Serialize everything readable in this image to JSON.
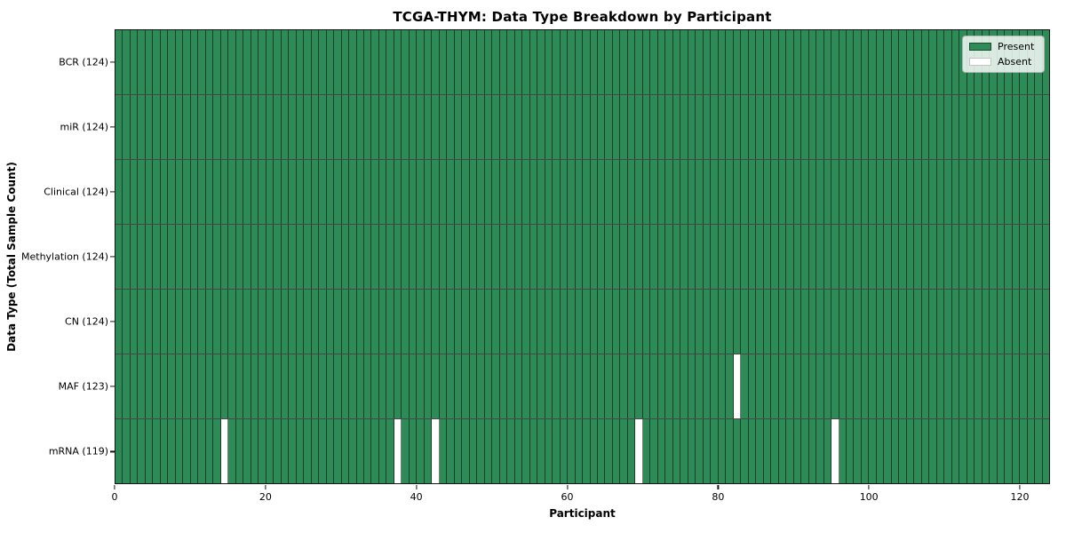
{
  "figure": {
    "title": "TCGA-THYM: Data Type Breakdown by Participant",
    "xlabel": "Participant",
    "ylabel": "Data Type (Total Sample Count)"
  },
  "legend": {
    "position": "upper-right",
    "items": [
      {
        "label": "Present",
        "color": "#2e8b57",
        "edge": "rgba(0,0,0,0.45)"
      },
      {
        "label": "Absent",
        "color": "#ffffff",
        "edge": "rgba(190,190,190,0.9)"
      }
    ]
  },
  "colors": {
    "present": "#2e8b57",
    "absent": "#ffffff",
    "cell_edge": "rgba(0,0,0,0.52)",
    "row_divider": "rgba(0,0,0,0.72)",
    "plot_border": "#141414",
    "background": "#ffffff"
  },
  "chart_data": {
    "type": "heatmap",
    "title": "TCGA-THYM: Data Type Breakdown by Participant",
    "xlabel": "Participant",
    "ylabel": "Data Type (Total Sample Count)",
    "xlim": [
      0,
      124
    ],
    "n_participants": 124,
    "x_ticks": [
      "0",
      "20",
      "40",
      "60",
      "80",
      "100",
      "120"
    ],
    "x_tick_values": [
      0,
      20,
      40,
      60,
      80,
      100,
      120
    ],
    "grid": "cell-edges",
    "legend_entries": [
      "Present",
      "Absent"
    ],
    "legend_position": "upper right",
    "value_map": {
      "present": 1,
      "absent": 0
    },
    "rows": [
      {
        "label": "BCR (124)",
        "data_type": "BCR",
        "present_count": 124,
        "absent_participants": []
      },
      {
        "label": "miR (124)",
        "data_type": "miR",
        "present_count": 124,
        "absent_participants": []
      },
      {
        "label": "Clinical (124)",
        "data_type": "Clinical",
        "present_count": 124,
        "absent_participants": []
      },
      {
        "label": "Methylation (124)",
        "data_type": "Methylation",
        "present_count": 124,
        "absent_participants": []
      },
      {
        "label": "CN (124)",
        "data_type": "CN",
        "present_count": 124,
        "absent_participants": []
      },
      {
        "label": "MAF (123)",
        "data_type": "MAF",
        "present_count": 123,
        "absent_participants": [
          82
        ]
      },
      {
        "label": "mRNA (119)",
        "data_type": "mRNA",
        "present_count": 119,
        "absent_participants": [
          14,
          37,
          42,
          69,
          95
        ]
      }
    ]
  }
}
